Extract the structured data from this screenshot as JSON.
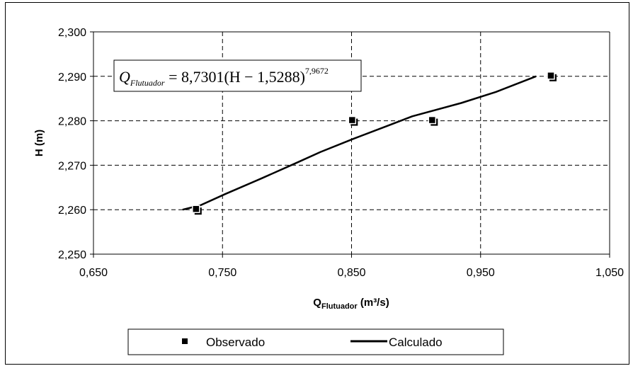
{
  "chart_data": {
    "type": "scatter",
    "xlabel": "Q",
    "xlabel_subscript": "Flutuador",
    "xlabel_unit": " (m³/s)",
    "ylabel": "H (m)",
    "xlim": [
      0.65,
      1.05
    ],
    "ylim": [
      2.25,
      2.3
    ],
    "x_ticks": [
      "0,650",
      "0,750",
      "0,850",
      "0,950",
      "1,050"
    ],
    "y_ticks": [
      "2,250",
      "2,260",
      "2,270",
      "2,280",
      "2,290",
      "2,300"
    ],
    "grid": true,
    "legend_placement": "bottom",
    "equation": {
      "lhs": "Q",
      "lhs_subscript": "Flutuador",
      "rhs": " = 8,7301(H − 1,5288)",
      "exponent": "7,9672"
    },
    "series": [
      {
        "name": "Observado",
        "style": "markers",
        "x": [
          0.73,
          0.851,
          0.913,
          1.005
        ],
        "y": [
          2.26,
          2.28,
          2.28,
          2.29
        ]
      },
      {
        "name": "Calculado",
        "style": "line",
        "x": [
          0.719,
          0.733,
          0.752,
          0.78,
          0.807,
          0.826,
          0.852,
          0.879,
          0.897,
          0.935,
          0.962,
          0.993
        ],
        "y": [
          2.26,
          2.261,
          2.2635,
          2.267,
          2.2705,
          2.273,
          2.276,
          2.279,
          2.281,
          2.284,
          2.2865,
          2.29
        ]
      }
    ]
  }
}
